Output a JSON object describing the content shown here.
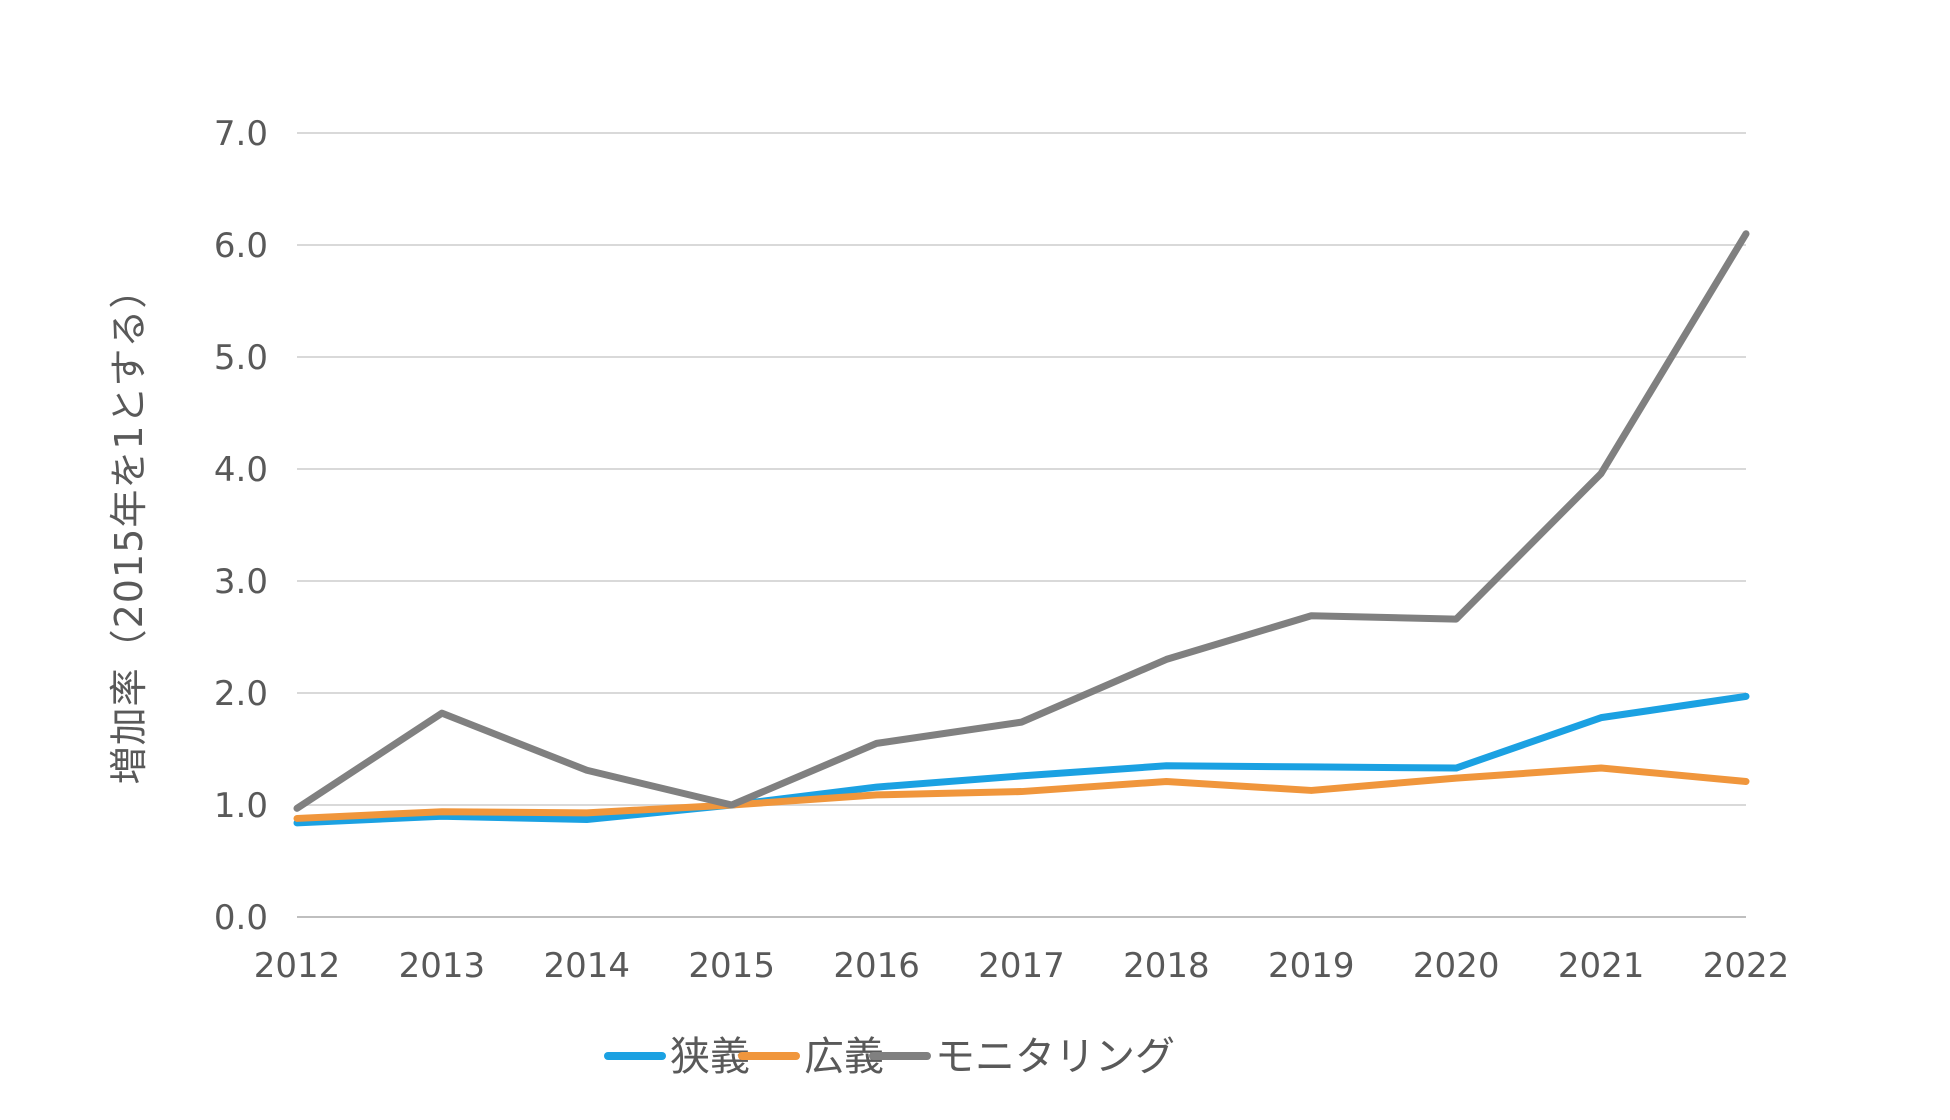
{
  "chart_data": {
    "type": "line",
    "title": "",
    "xlabel": "",
    "ylabel": "増加率（2015年を1とする）",
    "categories": [
      "2012",
      "2013",
      "2014",
      "2015",
      "2016",
      "2017",
      "2018",
      "2019",
      "2020",
      "2021",
      "2022"
    ],
    "series": [
      {
        "name": "狭義",
        "color": "#1BA1E2",
        "values": [
          0.84,
          0.9,
          0.87,
          1.0,
          1.16,
          1.26,
          1.35,
          1.34,
          1.33,
          1.78,
          1.97
        ]
      },
      {
        "name": "広義",
        "color": "#F0963C",
        "values": [
          0.88,
          0.94,
          0.93,
          1.0,
          1.09,
          1.12,
          1.21,
          1.13,
          1.24,
          1.33,
          1.21
        ]
      },
      {
        "name": "モニタリング",
        "color": "#808080",
        "values": [
          0.97,
          1.82,
          1.31,
          1.0,
          1.55,
          1.74,
          2.3,
          2.69,
          2.66,
          3.96,
          6.1
        ]
      }
    ],
    "ylim": [
      0,
      7
    ],
    "yticks": [
      "0.0",
      "1.0",
      "2.0",
      "3.0",
      "4.0",
      "5.0",
      "6.0",
      "7.0"
    ],
    "grid": true,
    "legend_position": "bottom",
    "colors": {
      "grid_line": "#D9D9D9",
      "zero_line": "#BFBFBF",
      "text": "#595959",
      "background": "#FFFFFF"
    }
  }
}
